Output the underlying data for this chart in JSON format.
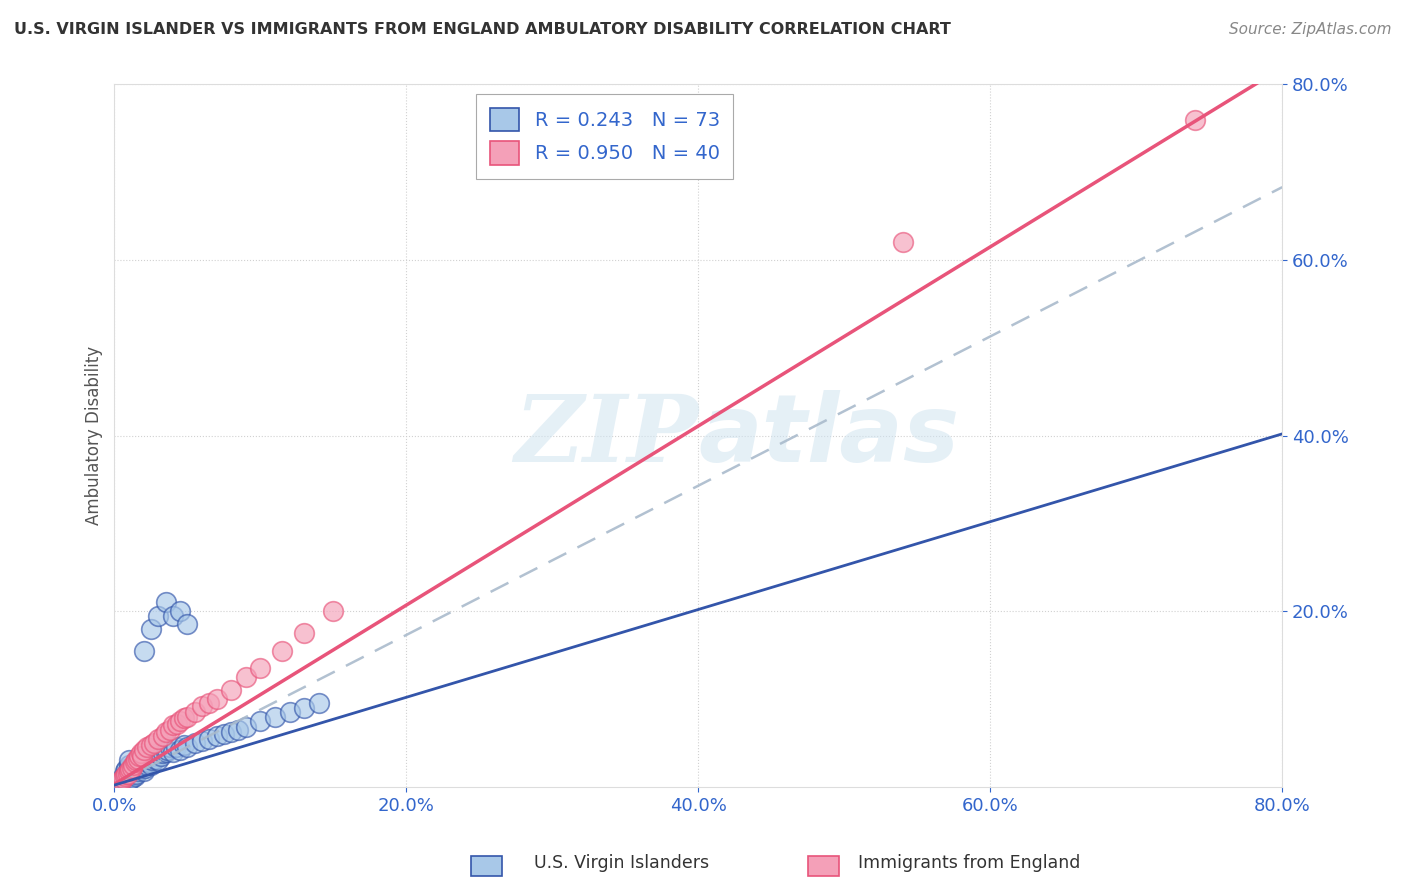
{
  "title": "U.S. VIRGIN ISLANDER VS IMMIGRANTS FROM ENGLAND AMBULATORY DISABILITY CORRELATION CHART",
  "source": "Source: ZipAtlas.com",
  "ylabel": "Ambulatory Disability",
  "legend_label_1": "U.S. Virgin Islanders",
  "legend_label_2": "Immigrants from England",
  "r1": 0.243,
  "n1": 73,
  "r2": 0.95,
  "n2": 40,
  "color_blue": "#A8C8E8",
  "color_pink": "#F4A0B8",
  "color_line_blue": "#3355AA",
  "color_line_pink": "#E8547A",
  "color_dash": "#AABBCC",
  "xmin": 0.0,
  "xmax": 0.8,
  "ymin": 0.0,
  "ymax": 0.8,
  "blue_points_x": [
    0.005,
    0.005,
    0.007,
    0.007,
    0.007,
    0.008,
    0.008,
    0.008,
    0.009,
    0.009,
    0.01,
    0.01,
    0.01,
    0.01,
    0.01,
    0.01,
    0.012,
    0.012,
    0.012,
    0.013,
    0.014,
    0.014,
    0.015,
    0.015,
    0.016,
    0.016,
    0.017,
    0.018,
    0.019,
    0.02,
    0.02,
    0.021,
    0.022,
    0.022,
    0.023,
    0.024,
    0.025,
    0.025,
    0.026,
    0.027,
    0.028,
    0.03,
    0.03,
    0.032,
    0.033,
    0.035,
    0.036,
    0.038,
    0.04,
    0.042,
    0.045,
    0.048,
    0.05,
    0.055,
    0.06,
    0.065,
    0.07,
    0.075,
    0.08,
    0.085,
    0.09,
    0.1,
    0.11,
    0.12,
    0.13,
    0.14,
    0.02,
    0.025,
    0.03,
    0.035,
    0.04,
    0.045,
    0.05
  ],
  "blue_points_y": [
    0.005,
    0.01,
    0.008,
    0.012,
    0.018,
    0.01,
    0.015,
    0.02,
    0.012,
    0.018,
    0.008,
    0.012,
    0.016,
    0.02,
    0.025,
    0.03,
    0.01,
    0.015,
    0.022,
    0.018,
    0.012,
    0.02,
    0.015,
    0.025,
    0.018,
    0.028,
    0.022,
    0.025,
    0.02,
    0.018,
    0.025,
    0.022,
    0.025,
    0.03,
    0.028,
    0.032,
    0.025,
    0.035,
    0.03,
    0.035,
    0.032,
    0.03,
    0.038,
    0.035,
    0.038,
    0.04,
    0.042,
    0.045,
    0.04,
    0.045,
    0.042,
    0.048,
    0.045,
    0.05,
    0.052,
    0.055,
    0.058,
    0.06,
    0.062,
    0.065,
    0.068,
    0.075,
    0.08,
    0.085,
    0.09,
    0.095,
    0.155,
    0.18,
    0.195,
    0.21,
    0.195,
    0.2,
    0.185
  ],
  "pink_points_x": [
    0.005,
    0.006,
    0.007,
    0.008,
    0.009,
    0.01,
    0.011,
    0.012,
    0.013,
    0.014,
    0.015,
    0.016,
    0.017,
    0.018,
    0.019,
    0.02,
    0.022,
    0.025,
    0.027,
    0.03,
    0.033,
    0.035,
    0.038,
    0.04,
    0.043,
    0.045,
    0.048,
    0.05,
    0.055,
    0.06,
    0.065,
    0.07,
    0.08,
    0.09,
    0.1,
    0.115,
    0.13,
    0.15,
    0.54,
    0.74
  ],
  "pink_points_y": [
    0.008,
    0.01,
    0.012,
    0.015,
    0.015,
    0.018,
    0.02,
    0.022,
    0.025,
    0.028,
    0.03,
    0.032,
    0.035,
    0.038,
    0.035,
    0.042,
    0.045,
    0.048,
    0.05,
    0.055,
    0.058,
    0.062,
    0.065,
    0.07,
    0.072,
    0.075,
    0.078,
    0.08,
    0.085,
    0.092,
    0.095,
    0.1,
    0.11,
    0.125,
    0.135,
    0.155,
    0.175,
    0.2,
    0.62,
    0.76
  ],
  "pink_slope": 1.02,
  "pink_intercept": 0.003,
  "dash_slope": 0.85,
  "dash_intercept": 0.003,
  "blue_line_slope": 0.5,
  "blue_line_intercept": 0.002
}
